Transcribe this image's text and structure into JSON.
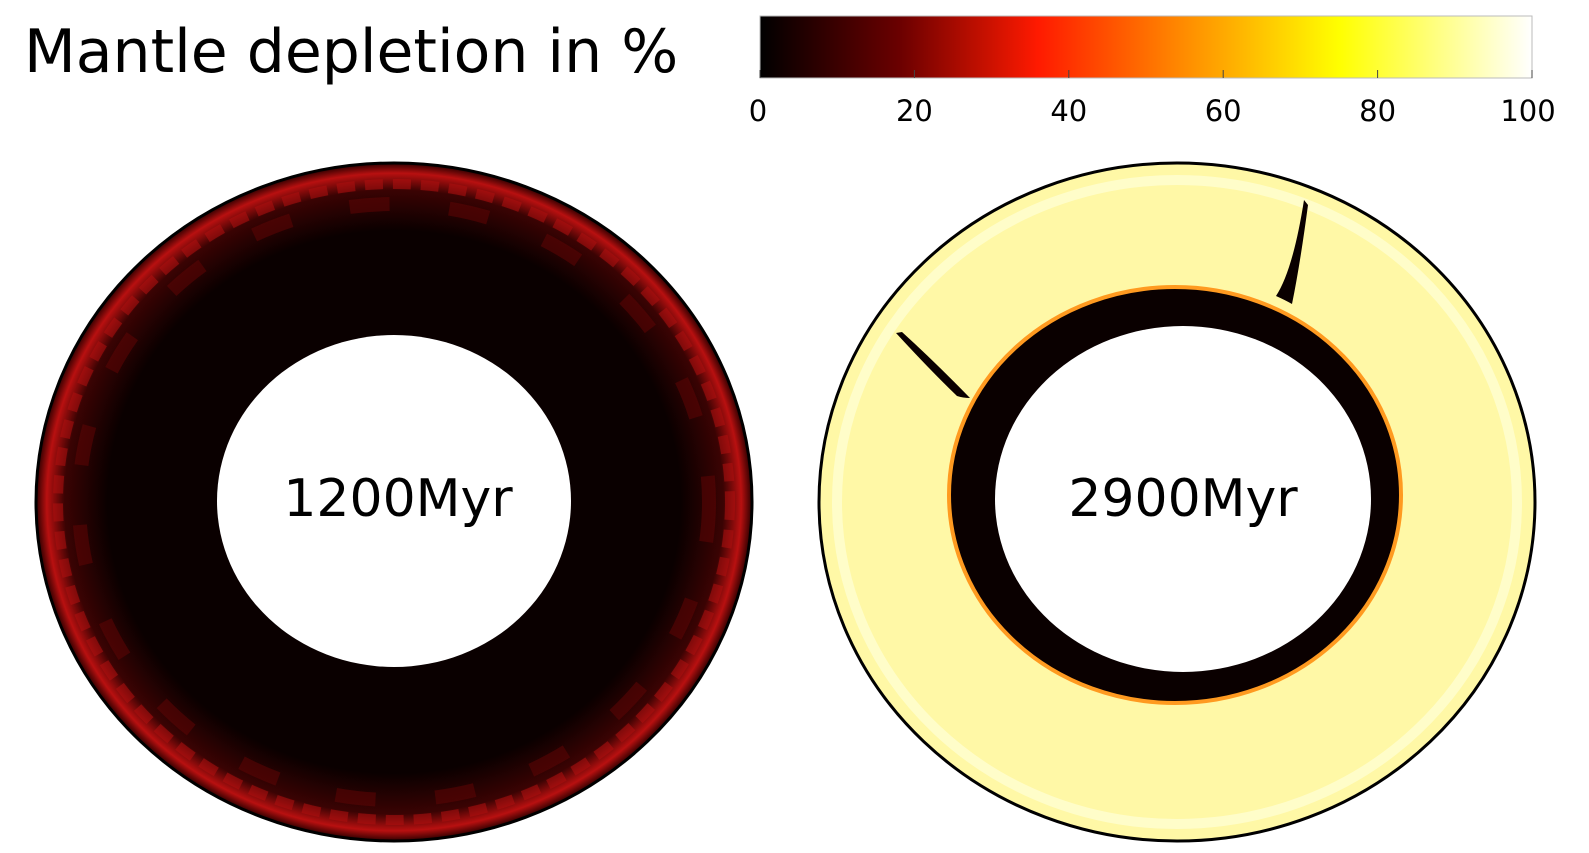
{
  "title": "Mantle depletion in %",
  "colorbar": {
    "min": 0,
    "max": 100,
    "ticks": [
      "0",
      "20",
      "40",
      "60",
      "80",
      "100"
    ],
    "colors": [
      "#000000",
      "#8b0000",
      "#ff1a00",
      "#ff8c00",
      "#ffff00",
      "#ffffff"
    ]
  },
  "panels": [
    {
      "time_label": "1200Myr",
      "outer_rim_color": "#d01010",
      "mantle_color": "#0a0000",
      "dominant_depletion": 2
    },
    {
      "time_label": "2900Myr",
      "outer_rim_color": "#fff9a8",
      "mantle_color": "#fffaa0",
      "inner_layer_color": "#0a0000",
      "dominant_depletion": 90
    }
  ]
}
